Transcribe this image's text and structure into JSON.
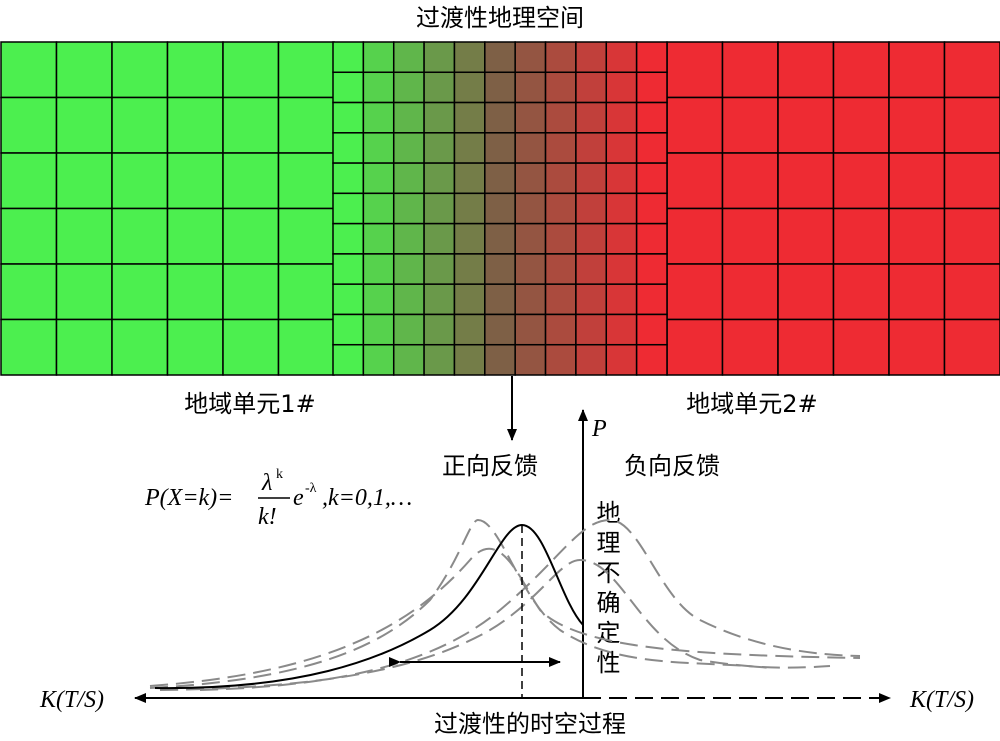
{
  "title": "过渡性地理空间",
  "region_labels": [
    "地域单元1#",
    "地域单元2#"
  ],
  "feedback_labels": [
    "正向反馈",
    "负向反馈"
  ],
  "p_axis_label": "P",
  "formula": {
    "lhs": "P(X=k)=",
    "numerator": "λ",
    "numerator_exp": "k",
    "denominator": "k!",
    "base": "e",
    "exponent": "-λ",
    "rest": ",k=0,1,…"
  },
  "uncertainty_label": "地理不确定性",
  "k_axis_label": "K(T/S)",
  "process_label": "过渡性的时空过程"
}
